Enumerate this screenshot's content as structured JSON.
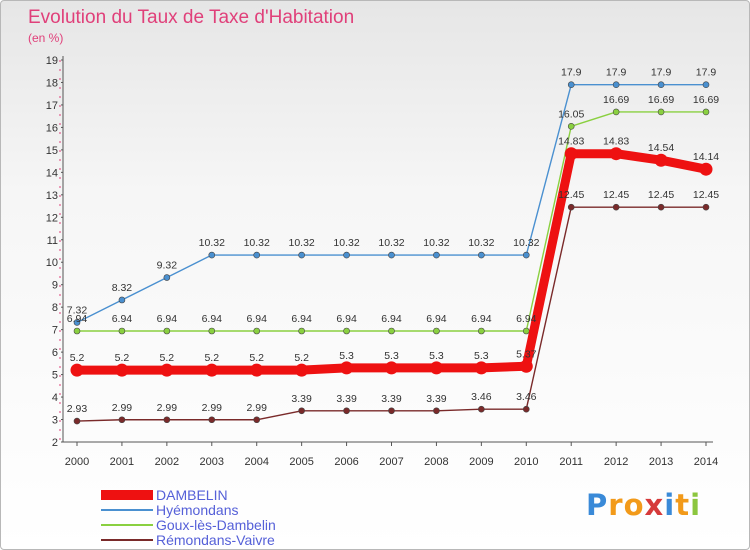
{
  "header": {
    "title": "Evolution du Taux de Taxe d'Habitation",
    "subtitle": "(en %)"
  },
  "logo": {
    "text": "Proxiti",
    "letters": [
      "P",
      "r",
      "o",
      "x",
      "i",
      "t",
      "i"
    ],
    "colors": [
      "#3a8ad8",
      "#f29a1a",
      "#f29a1a",
      "#d63a3a",
      "#3a8ad8",
      "#f29a1a",
      "#8cc63f"
    ]
  },
  "chart_data": {
    "type": "line",
    "x": [
      "2000",
      "2001",
      "2002",
      "2003",
      "2004",
      "2005",
      "2006",
      "2007",
      "2008",
      "2009",
      "2010",
      "2011",
      "2012",
      "2013",
      "2014"
    ],
    "ylim": [
      2,
      19
    ],
    "yticks": [
      "2",
      "3",
      "4",
      "5",
      "6",
      "7",
      "8",
      "9",
      "10",
      "11",
      "12",
      "13",
      "14",
      "15",
      "16",
      "17",
      "18",
      "19"
    ],
    "grid": false,
    "legend_position": "bottom-left",
    "series": [
      {
        "name": "DAMBELIN",
        "color": "#ee1111",
        "emphasis": true,
        "values": [
          5.2,
          5.2,
          5.2,
          5.2,
          5.2,
          5.2,
          5.3,
          5.3,
          5.3,
          5.3,
          5.37,
          14.83,
          14.83,
          14.54,
          14.14
        ],
        "labels": [
          "5.2",
          "5.2",
          "5.2",
          "5.2",
          "5.2",
          "5.2",
          "5.3",
          "5.3",
          "5.3",
          "5.3",
          "5.37",
          "14.83",
          "14.83",
          "14.54",
          "14.14"
        ]
      },
      {
        "name": "Hyémondans",
        "color": "#4a90d0",
        "values": [
          7.32,
          8.32,
          9.32,
          10.32,
          10.32,
          10.32,
          10.32,
          10.32,
          10.32,
          10.32,
          10.32,
          17.9,
          17.9,
          17.9,
          17.9
        ],
        "labels": [
          "7.32",
          "8.32",
          "9.32",
          "10.32",
          "10.32",
          "10.32",
          "10.32",
          "10.32",
          "10.32",
          "10.32",
          "10.32",
          "17.9",
          "17.9",
          "17.9",
          "17.9"
        ]
      },
      {
        "name": "Goux-lès-Dambelin",
        "color": "#8ad040",
        "values": [
          6.94,
          6.94,
          6.94,
          6.94,
          6.94,
          6.94,
          6.94,
          6.94,
          6.94,
          6.94,
          6.94,
          16.05,
          16.69,
          16.69,
          16.69
        ],
        "labels": [
          "6.94",
          "6.94",
          "6.94",
          "6.94",
          "6.94",
          "6.94",
          "6.94",
          "6.94",
          "6.94",
          "6.94",
          "6.94",
          "16.05",
          "16.69",
          "16.69",
          "16.69"
        ]
      },
      {
        "name": "Rémondans-Vaivre",
        "color": "#7a2a2a",
        "values": [
          2.93,
          2.99,
          2.99,
          2.99,
          2.99,
          3.39,
          3.39,
          3.39,
          3.39,
          3.46,
          3.46,
          12.45,
          12.45,
          12.45,
          12.45
        ],
        "labels": [
          "2.93",
          "2.99",
          "2.99",
          "2.99",
          "2.99",
          "3.39",
          "3.39",
          "3.39",
          "3.39",
          "3.46",
          "3.46",
          "12.45",
          "12.45",
          "12.45",
          "12.45"
        ]
      }
    ]
  }
}
